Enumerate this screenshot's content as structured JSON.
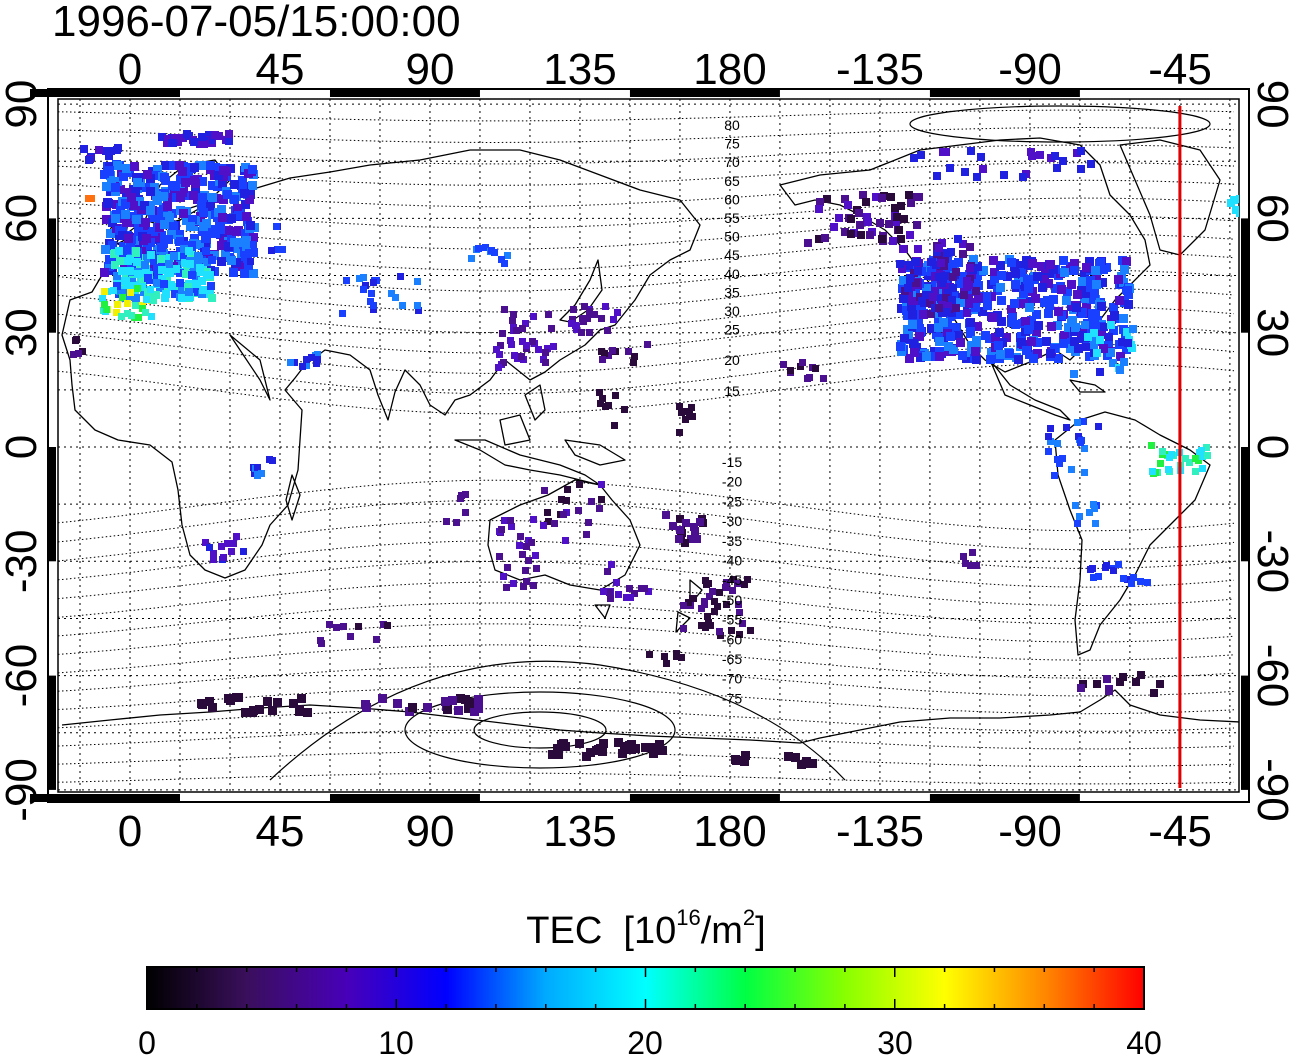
{
  "timestamp": "1996-07-05/15:00:00",
  "map": {
    "x_tick_labels": [
      "0",
      "45",
      "90",
      "135",
      "180",
      "-135",
      "-90",
      "-45"
    ],
    "y_tick_labels": [
      "90",
      "60",
      "30",
      "0",
      "-30",
      "-60",
      "-90"
    ],
    "contour_labels_north": [
      "80",
      "75",
      "70",
      "65",
      "60",
      "55",
      "50",
      "45",
      "40",
      "35",
      "30",
      "25",
      "20",
      "15"
    ],
    "contour_labels_south": [
      "-15",
      "-20",
      "-25",
      "-30",
      "-35",
      "-40",
      "-45",
      "-50",
      "-55",
      "-60",
      "-65",
      "-70",
      "-75"
    ],
    "marker_longitude": -45,
    "marker_color": "#e00000"
  },
  "colorbar": {
    "title": "TEC",
    "unit_prefix": "[10",
    "unit_exp1": "16",
    "unit_mid": "/m",
    "unit_exp2": "2",
    "unit_suffix": "]",
    "min": 0,
    "max": 40,
    "tick_labels": [
      "0",
      "10",
      "20",
      "30",
      "40"
    ],
    "stops": [
      "#000000",
      "#3a0f5c",
      "#4800b8",
      "#0000ff",
      "#00aaff",
      "#00ffff",
      "#00ff44",
      "#88ff00",
      "#ffff00",
      "#ff8800",
      "#ff0000"
    ]
  }
}
